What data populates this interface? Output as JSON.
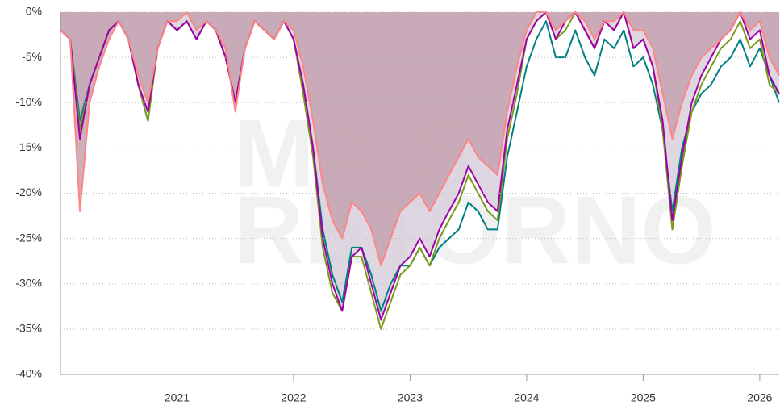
{
  "chart_data": {
    "type": "line",
    "watermark": [
      "MAIS",
      "RETORNO"
    ],
    "x": [
      2020.0,
      2020.083,
      2020.167,
      2020.25,
      2020.333,
      2020.417,
      2020.5,
      2020.583,
      2020.667,
      2020.75,
      2020.833,
      2020.917,
      2021.0,
      2021.083,
      2021.167,
      2021.25,
      2021.333,
      2021.417,
      2021.5,
      2021.583,
      2021.667,
      2021.75,
      2021.833,
      2021.917,
      2022.0,
      2022.083,
      2022.167,
      2022.25,
      2022.333,
      2022.417,
      2022.5,
      2022.583,
      2022.667,
      2022.75,
      2022.833,
      2022.917,
      2023.0,
      2023.083,
      2023.167,
      2023.25,
      2023.333,
      2023.417,
      2023.5,
      2023.583,
      2023.667,
      2023.75,
      2023.833,
      2023.917,
      2024.0,
      2024.083,
      2024.167,
      2024.25,
      2024.333,
      2024.417,
      2024.5,
      2024.583,
      2024.667,
      2024.75,
      2024.833,
      2024.917,
      2025.0,
      2025.083,
      2025.167,
      2025.25,
      2025.333,
      2025.417,
      2025.5,
      2025.583,
      2025.667,
      2025.75,
      2025.833,
      2025.917,
      2026.0,
      2026.083,
      2026.167
    ],
    "series": [
      {
        "color": "#008080",
        "values": [
          -2,
          -3,
          -12,
          -8,
          -5,
          -2,
          -1,
          -3,
          -8,
          -12,
          -4,
          -1,
          -2,
          -1,
          -3,
          -1,
          -2,
          -5,
          -10,
          -4,
          -1,
          -2,
          -3,
          -1,
          -3,
          -8,
          -15,
          -24,
          -29,
          -32,
          -26,
          -26,
          -29,
          -33,
          -30,
          -28,
          -28,
          -26,
          -28,
          -26,
          -25,
          -24,
          -21,
          -22,
          -24,
          -24,
          -16,
          -11,
          -6,
          -3,
          -1,
          -5,
          -5,
          -2,
          -5,
          -7,
          -3,
          -4,
          -2,
          -6,
          -5,
          -8,
          -13,
          -22,
          -15,
          -11,
          -9,
          -8,
          -6,
          -5,
          -3,
          -6,
          -4,
          -7,
          -10
        ]
      },
      {
        "color": "#7a9a1a",
        "values": [
          -2,
          -3,
          -13,
          -8,
          -5,
          -2,
          -1,
          -3,
          -8,
          -12,
          -4,
          -1,
          -2,
          -1,
          -3,
          -1,
          -2,
          -5,
          -10,
          -4,
          -1,
          -2,
          -3,
          -1,
          -3,
          -9,
          -16,
          -26,
          -31,
          -33,
          -27,
          -27,
          -31,
          -35,
          -32,
          -29,
          -28,
          -26,
          -28,
          -25,
          -23,
          -21,
          -18,
          -20,
          -22,
          -23,
          -14,
          -9,
          -3,
          -1,
          0,
          -3,
          -2,
          0,
          -2,
          -4,
          -1,
          -2,
          0,
          -4,
          -3,
          -6,
          -13,
          -24,
          -17,
          -11,
          -8,
          -6,
          -4,
          -3,
          -1,
          -4,
          -3,
          -8,
          -9
        ]
      },
      {
        "color": "#a000a8",
        "fill": "#d8d0dc",
        "values": [
          -2,
          -3,
          -14,
          -8,
          -5,
          -2,
          -1,
          -3,
          -8,
          -11,
          -4,
          -1,
          -2,
          -1,
          -3,
          -1,
          -2,
          -5,
          -10,
          -4,
          -1,
          -2,
          -3,
          -1,
          -3,
          -8,
          -15,
          -25,
          -30,
          -33,
          -27,
          -26,
          -30,
          -34,
          -31,
          -28,
          -27,
          -25,
          -27,
          -24,
          -22,
          -20,
          -17,
          -19,
          -21,
          -22,
          -13,
          -8,
          -3,
          -1,
          0,
          -3,
          -1,
          0,
          -2,
          -4,
          -1,
          -2,
          0,
          -4,
          -3,
          -6,
          -12,
          -23,
          -16,
          -10,
          -7,
          -5,
          -3,
          -2,
          0,
          -3,
          -2,
          -7,
          -9
        ]
      },
      {
        "color": "#ff8585",
        "fill": "#c4a2b0",
        "values": [
          -2,
          -3,
          -22,
          -10,
          -6,
          -3,
          -1,
          -3,
          -7,
          -10,
          -4,
          -1,
          -1,
          0,
          -2,
          -1,
          -2,
          -4,
          -11,
          -4,
          -1,
          -2,
          -3,
          -1,
          -2,
          -6,
          -12,
          -19,
          -23,
          -25,
          -21,
          -22,
          -24,
          -28,
          -25,
          -22,
          -21,
          -20,
          -22,
          -20,
          -18,
          -16,
          -14,
          -16,
          -17,
          -18,
          -11,
          -6,
          -2,
          0,
          0,
          -2,
          -1,
          0,
          -1,
          -3,
          -1,
          -1,
          0,
          -2,
          -2,
          -4,
          -9,
          -14,
          -10,
          -7,
          -5,
          -4,
          -3,
          -2,
          0,
          -2,
          -1,
          -5,
          -7
        ]
      }
    ],
    "xlim": [
      2020.0,
      2026.167
    ],
    "xticks": [
      2021,
      2022,
      2023,
      2024,
      2025,
      2026
    ],
    "ylim": [
      -40,
      0
    ],
    "yticks": [
      {
        "value": -40,
        "label": "-40%"
      },
      {
        "value": -35,
        "label": "-35%"
      },
      {
        "value": -30,
        "label": "-30%"
      },
      {
        "value": -25,
        "label": "-25%"
      },
      {
        "value": -20,
        "label": "-20%"
      },
      {
        "value": -15,
        "label": "-15%"
      },
      {
        "value": -10,
        "label": "-10%"
      },
      {
        "value": -5,
        "label": "-5%"
      },
      {
        "value": 0,
        "label": "0%"
      }
    ],
    "grid": true
  }
}
